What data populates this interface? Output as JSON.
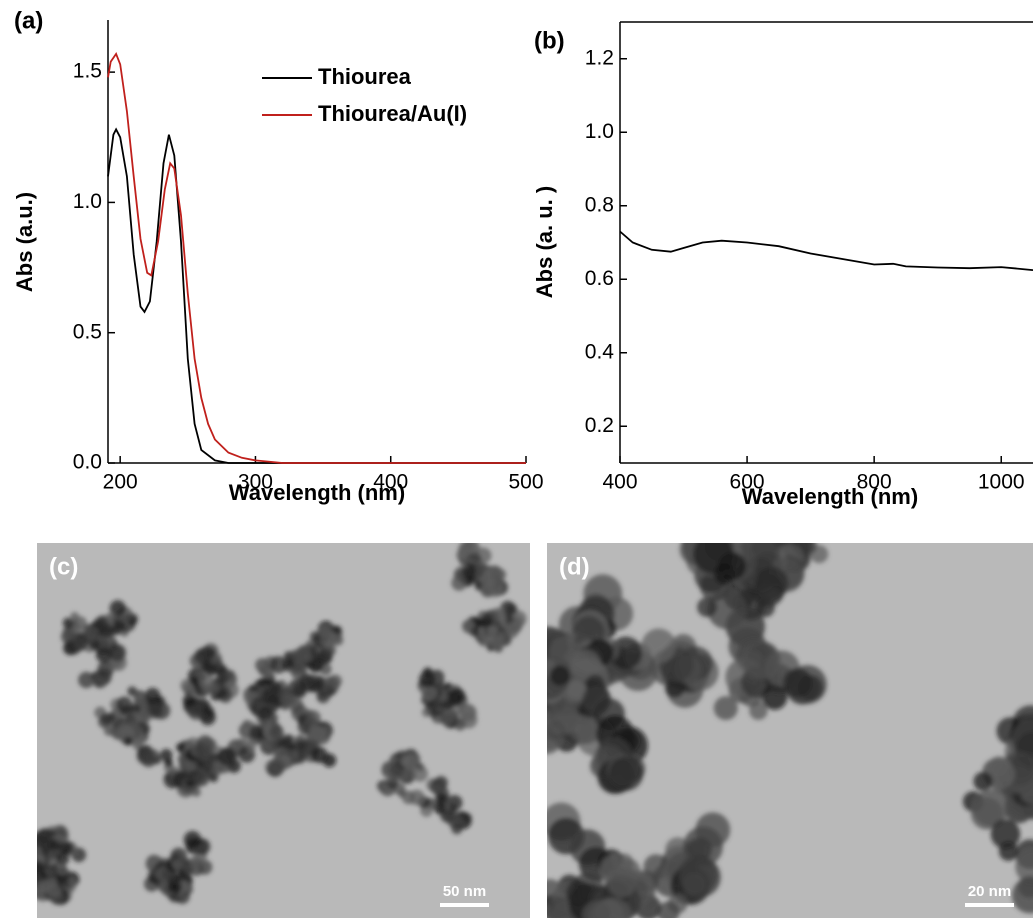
{
  "chart_data": [
    {
      "type": "line",
      "panel_label": "(a)",
      "x_label": "Wavelength (nm)",
      "y_label": "Abs (a.u.)",
      "xlim": [
        191,
        500
      ],
      "xticks": [
        200,
        300,
        400,
        500
      ],
      "ylim": [
        0,
        1.7
      ],
      "yticks": [
        {
          "value": 0,
          "label": "0.0"
        },
        0.5,
        {
          "value": 1,
          "label": "1.0"
        },
        1.5
      ],
      "legend": "upper right",
      "series": [
        {
          "name": "Thiourea",
          "color": "#000000",
          "x": [
            191,
            195,
            197,
            200,
            205,
            210,
            215,
            218,
            222,
            227,
            232,
            236,
            240,
            245,
            250,
            255,
            260,
            270,
            280,
            500
          ],
          "values": [
            1.1,
            1.26,
            1.28,
            1.25,
            1.1,
            0.8,
            0.6,
            0.58,
            0.62,
            0.85,
            1.15,
            1.26,
            1.18,
            0.85,
            0.4,
            0.15,
            0.05,
            0.01,
            0,
            0
          ]
        },
        {
          "name": "Thiourea/Au(I)",
          "color": "#c0201c",
          "x": [
            191,
            193,
            197,
            200,
            205,
            210,
            215,
            220,
            223,
            228,
            233,
            237,
            240,
            245,
            250,
            255,
            260,
            265,
            270,
            280,
            290,
            300,
            320,
            500
          ],
          "values": [
            1.48,
            1.54,
            1.57,
            1.53,
            1.35,
            1.1,
            0.86,
            0.73,
            0.72,
            0.85,
            1.05,
            1.15,
            1.13,
            0.95,
            0.65,
            0.4,
            0.25,
            0.15,
            0.09,
            0.04,
            0.02,
            0.01,
            0,
            0
          ]
        }
      ]
    },
    {
      "type": "line",
      "panel_label": "(b)",
      "x_label": "Wavelength (nm)",
      "y_label": "Abs (a. u. )",
      "xlim": [
        400,
        1050
      ],
      "xticks": [
        400,
        600,
        800,
        1000
      ],
      "ylim": [
        0.1,
        1.3
      ],
      "yticks": [
        0.2,
        0.4,
        0.6,
        0.8,
        {
          "value": 1,
          "label": "1.0"
        },
        1.2
      ],
      "series": [
        {
          "color": "#000000",
          "x": [
            400,
            420,
            450,
            480,
            500,
            530,
            560,
            600,
            650,
            700,
            750,
            800,
            830,
            850,
            900,
            950,
            1000,
            1050
          ],
          "values": [
            0.73,
            0.7,
            0.68,
            0.675,
            0.685,
            0.7,
            0.705,
            0.7,
            0.69,
            0.67,
            0.655,
            0.64,
            0.642,
            0.635,
            0.632,
            0.63,
            0.633,
            0.625
          ]
        }
      ]
    }
  ],
  "images": [
    {
      "panel_label": "(c)",
      "scale_bar": "50 nm"
    },
    {
      "panel_label": "(d)",
      "scale_bar": "20 nm"
    }
  ]
}
